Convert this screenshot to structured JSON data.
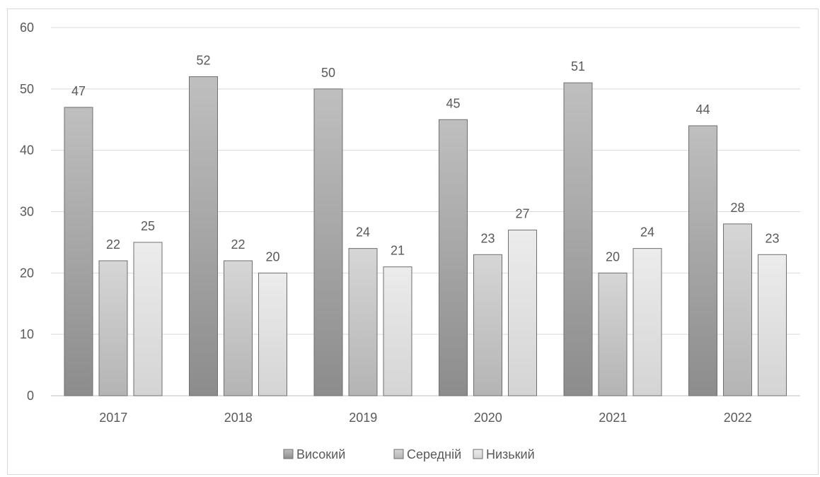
{
  "chart_data": {
    "type": "bar",
    "categories": [
      "2017",
      "2018",
      "2019",
      "2020",
      "2021",
      "2022"
    ],
    "series": [
      {
        "name": "Високий",
        "values": [
          47,
          52,
          50,
          45,
          51,
          44
        ],
        "color": "#a6a6a6"
      },
      {
        "name": "Середній",
        "values": [
          22,
          22,
          24,
          23,
          20,
          28
        ],
        "color": "#c8c8c8"
      },
      {
        "name": "Низький",
        "values": [
          25,
          20,
          21,
          27,
          24,
          23
        ],
        "color": "#e2e2e2"
      }
    ],
    "y_ticks": [
      "0",
      "10",
      "20",
      "30",
      "40",
      "50",
      "60"
    ],
    "ylim": [
      0,
      60
    ],
    "grid": true,
    "legend_position": "bottom",
    "data_labels": true
  }
}
